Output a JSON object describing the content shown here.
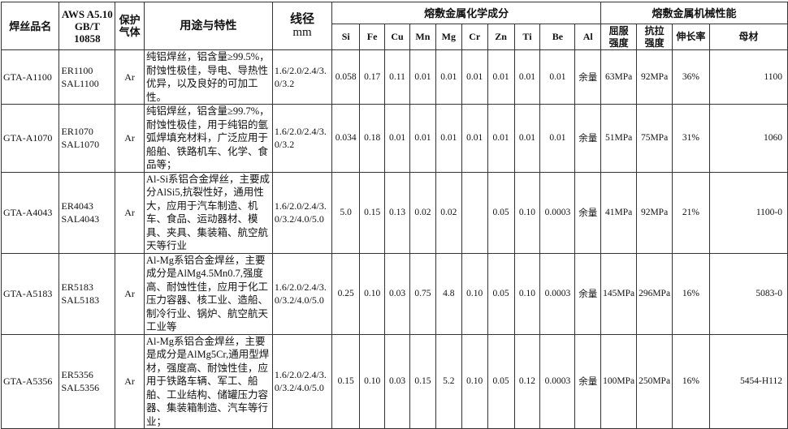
{
  "header": {
    "name": "焊丝品名",
    "aws": [
      "AWS A5.10",
      "GB/T 10858"
    ],
    "gas": [
      "保护",
      "气体"
    ],
    "usage": "用途与特性",
    "diameter": [
      "线径",
      "mm"
    ],
    "chem_group": "熔敷金属化学成分",
    "mech_group": "熔敷金属机械性能",
    "chem_cols": [
      "Si",
      "Fe",
      "Cu",
      "Mn",
      "Mg",
      "Cr",
      "Zn",
      "Ti",
      "Be",
      "Al"
    ],
    "mech_cols": [
      [
        "屈服",
        "强度"
      ],
      [
        "抗拉",
        "强度"
      ],
      [
        "伸长率"
      ],
      [
        "母材"
      ]
    ]
  },
  "rows": [
    {
      "name": "GTA-A1100",
      "aws": [
        "ER1100",
        "SAL1100"
      ],
      "gas": "Ar",
      "usage": "纯铝焊丝，铝含量≥99.5%，耐蚀性极佳，导电、导热性优异，以及良好的可加工性。",
      "diameter": "1.6/2.0/2.4/3.0/3.2",
      "chem": [
        "0.058",
        "0.17",
        "0.11",
        "0.01",
        "0.01",
        "0.01",
        "0.01",
        "0.01",
        "0.01",
        "余量"
      ],
      "mech": [
        "63MPa",
        "92MPa",
        "36%",
        "1100"
      ]
    },
    {
      "name": "GTA-A1070",
      "aws": [
        "ER1070",
        "SAL1070"
      ],
      "gas": "Ar",
      "usage": "纯铝焊丝，铝含量≥99.7%，耐蚀性极佳，用于纯铝的氩弧焊填充材料，广泛应用于船舶、铁路机车、化学、食品等；",
      "diameter": "1.6/2.0/2.4/3.0/3.2",
      "chem": [
        "0.034",
        "0.18",
        "0.01",
        "0.01",
        "0.01",
        "0.01",
        "0.01",
        "0.01",
        "0.01",
        "余量"
      ],
      "mech": [
        "51MPa",
        "75MPa",
        "31%",
        "1060"
      ]
    },
    {
      "name": "GTA-A4043",
      "aws": [
        "ER4043",
        "SAL4043"
      ],
      "gas": "Ar",
      "usage": "Al-Si系铝合金焊丝，主要成分AlSi5,抗裂性好，通用性大，应用于汽车制造、机车、食品、运动器材、模具、夹具、集装箱、航空航天等行业",
      "diameter": "1.6/2.0/2.4/3.0/3.2/4.0/5.0",
      "chem": [
        "5.0",
        "0.15",
        "0.13",
        "0.02",
        "0.02",
        "",
        "0.05",
        "0.10",
        "0.0003",
        "余量"
      ],
      "mech": [
        "41MPa",
        "92MPa",
        "21%",
        "1100-0"
      ]
    },
    {
      "name": "GTA-A5183",
      "aws": [
        "ER5183",
        "SAL5183"
      ],
      "gas": "Ar",
      "usage": "Al-Mg系铝合金焊丝，主要成分是AlMg4.5Mn0.7,强度高、耐蚀性佳，应用于化工压力容器、核工业、造船、制冷行业、锅炉、航空航天工业等",
      "diameter": "1.6/2.0/2.4/3.0/3.2/4.0/5.0",
      "chem": [
        "0.25",
        "0.10",
        "0.03",
        "0.75",
        "4.8",
        "0.10",
        "0.05",
        "0.10",
        "0.0003",
        "余量"
      ],
      "mech": [
        "145MPa",
        "296MPa",
        "16%",
        "5083-0"
      ]
    },
    {
      "name": "GTA-A5356",
      "aws": [
        "ER5356",
        "SAL5356"
      ],
      "gas": "Ar",
      "usage": "Al-Mg系铝合金焊丝，主要是成分是AlMg5Cr,通用型焊材，强度高、耐蚀性佳，应用于铁路车辆、军工、船舶、工业结构、储罐压力容器、集装箱制造、汽车等行业；",
      "diameter": "1.6/2.0/2.4/3.0/3.2/4.0/5.0",
      "chem": [
        "0.15",
        "0.10",
        "0.03",
        "0.15",
        "5.2",
        "0.10",
        "0.05",
        "0.12",
        "0.0003",
        "余量"
      ],
      "mech": [
        "100MPa",
        "250MPa",
        "16%",
        "5454-H112"
      ]
    }
  ]
}
